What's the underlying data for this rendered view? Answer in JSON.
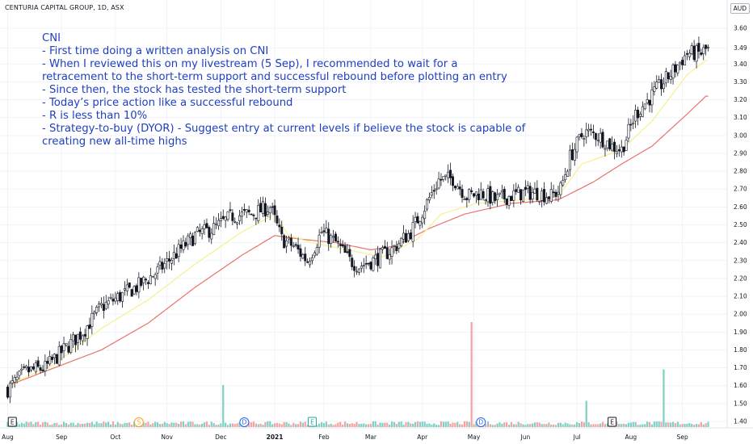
{
  "header": {
    "ticker_line": "CENTURIA CAPITAL GROUP, 1D, ASX",
    "currency": "AUD"
  },
  "annotation": {
    "lines": [
      "CNI",
      "- First time doing a written analysis on CNI",
      "- When I reviewed this on my livestream (5 Sep), I recommended to wait for a",
      "retracement to the short-term support and successful rebound before plotting an entry",
      "- Since then, the stock has tested the short-term support",
      "- Today’s price action like a successful rebound",
      "- R is less than 10%",
      "- Strategy-to-buy (DYOR) - Suggest entry at current levels if believe the stock is capable of",
      "creating new all-time highs"
    ],
    "color": "#1f3fbf"
  },
  "chart_data": {
    "type": "candlestick",
    "y_axis": {
      "ticks": [
        "3.60",
        "3.49",
        "3.40",
        "3.30",
        "3.20",
        "3.10",
        "3.00",
        "2.90",
        "2.80",
        "2.70",
        "2.60",
        "2.50",
        "2.40",
        "2.30",
        "2.20",
        "2.10",
        "2.00",
        "1.90",
        "1.80",
        "1.70",
        "1.60",
        "1.50",
        "1.40"
      ],
      "range": [
        1.36,
        3.64
      ]
    },
    "x_axis": {
      "ticks": [
        {
          "label": "Aug",
          "bold": false
        },
        {
          "label": "Sep",
          "bold": false
        },
        {
          "label": "Oct",
          "bold": false
        },
        {
          "label": "Nov",
          "bold": false
        },
        {
          "label": "Dec",
          "bold": false
        },
        {
          "label": "2021",
          "bold": true
        },
        {
          "label": "Feb",
          "bold": false
        },
        {
          "label": "Mar",
          "bold": false
        },
        {
          "label": "Apr",
          "bold": false
        },
        {
          "label": "May",
          "bold": false
        },
        {
          "label": "Jun",
          "bold": false
        },
        {
          "label": "Jul",
          "bold": false
        },
        {
          "label": "Aug",
          "bold": false
        },
        {
          "label": "Sep",
          "bold": false
        }
      ],
      "tick_bar_index": [
        0,
        23,
        46,
        68,
        91,
        114,
        135,
        155,
        177,
        199,
        221,
        243,
        266,
        288
      ]
    },
    "price_anchors": [
      [
        0,
        1.58
      ],
      [
        8,
        1.68
      ],
      [
        16,
        1.7
      ],
      [
        24,
        1.8
      ],
      [
        32,
        1.9
      ],
      [
        40,
        2.04
      ],
      [
        48,
        2.1
      ],
      [
        56,
        2.16
      ],
      [
        64,
        2.24
      ],
      [
        72,
        2.34
      ],
      [
        80,
        2.44
      ],
      [
        88,
        2.48
      ],
      [
        96,
        2.55
      ],
      [
        104,
        2.56
      ],
      [
        112,
        2.6
      ],
      [
        117,
        2.42
      ],
      [
        122,
        2.38
      ],
      [
        128,
        2.3
      ],
      [
        134,
        2.46
      ],
      [
        140,
        2.4
      ],
      [
        146,
        2.3
      ],
      [
        150,
        2.27
      ],
      [
        156,
        2.3
      ],
      [
        164,
        2.36
      ],
      [
        172,
        2.46
      ],
      [
        178,
        2.6
      ],
      [
        184,
        2.75
      ],
      [
        190,
        2.76
      ],
      [
        196,
        2.66
      ],
      [
        202,
        2.68
      ],
      [
        208,
        2.64
      ],
      [
        214,
        2.66
      ],
      [
        220,
        2.68
      ],
      [
        226,
        2.68
      ],
      [
        232,
        2.66
      ],
      [
        236,
        2.7
      ],
      [
        240,
        2.88
      ],
      [
        246,
        3.02
      ],
      [
        252,
        3.0
      ],
      [
        258,
        2.94
      ],
      [
        262,
        2.92
      ],
      [
        268,
        3.12
      ],
      [
        276,
        3.24
      ],
      [
        284,
        3.36
      ],
      [
        290,
        3.46
      ],
      [
        296,
        3.46
      ],
      [
        298,
        3.48
      ]
    ],
    "ema_short_anchors": [
      [
        0,
        1.6
      ],
      [
        20,
        1.72
      ],
      [
        40,
        1.92
      ],
      [
        60,
        2.08
      ],
      [
        80,
        2.28
      ],
      [
        100,
        2.46
      ],
      [
        114,
        2.56
      ],
      [
        120,
        2.44
      ],
      [
        130,
        2.4
      ],
      [
        145,
        2.36
      ],
      [
        160,
        2.32
      ],
      [
        175,
        2.42
      ],
      [
        185,
        2.56
      ],
      [
        200,
        2.62
      ],
      [
        220,
        2.64
      ],
      [
        235,
        2.66
      ],
      [
        245,
        2.84
      ],
      [
        262,
        2.92
      ],
      [
        275,
        3.08
      ],
      [
        290,
        3.34
      ],
      [
        298,
        3.42
      ]
    ],
    "ema_long_anchors": [
      [
        0,
        1.6
      ],
      [
        20,
        1.7
      ],
      [
        40,
        1.8
      ],
      [
        60,
        1.95
      ],
      [
        80,
        2.15
      ],
      [
        100,
        2.33
      ],
      [
        114,
        2.44
      ],
      [
        125,
        2.42
      ],
      [
        140,
        2.4
      ],
      [
        155,
        2.36
      ],
      [
        165,
        2.38
      ],
      [
        180,
        2.48
      ],
      [
        195,
        2.56
      ],
      [
        215,
        2.62
      ],
      [
        235,
        2.64
      ],
      [
        250,
        2.74
      ],
      [
        262,
        2.84
      ],
      [
        275,
        2.94
      ],
      [
        290,
        3.12
      ],
      [
        298,
        3.22
      ]
    ],
    "volume": {
      "baseline_scale": "relative",
      "spikes": [
        [
          92,
          0.4
        ],
        [
          198,
          1.0
        ],
        [
          280,
          0.55
        ],
        [
          247,
          0.25
        ]
      ]
    },
    "events": [
      {
        "label": "E",
        "kind": "earnings",
        "bar": 2
      },
      {
        "label": "S",
        "kind": "split",
        "bar": 56
      },
      {
        "label": "D",
        "kind": "dividend",
        "bar": 101
      },
      {
        "label": "E",
        "kind": "earnings",
        "bar": 130
      },
      {
        "label": "D",
        "kind": "dividend",
        "bar": 202
      },
      {
        "label": "E",
        "kind": "earnings",
        "bar": 258
      }
    ],
    "colors": {
      "up": "#26a69a",
      "down": "#ef5350",
      "candle": "#131722",
      "ema_short": "#f7f08c",
      "ema_long": "#e8736b",
      "volume_up": "#7fcfc4",
      "volume_down": "#f4a3a0",
      "grid": "#f0f3fa"
    }
  }
}
